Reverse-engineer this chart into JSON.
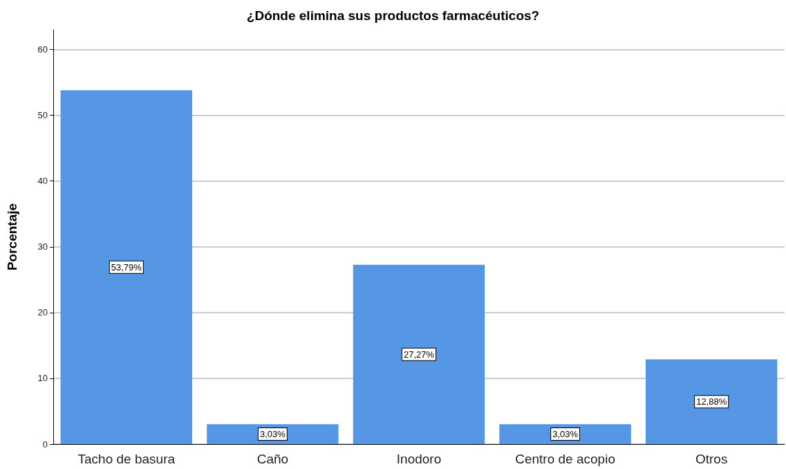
{
  "chart_data": {
    "type": "bar",
    "title": "¿Dónde elimina sus productos farmacéuticos?",
    "ylabel": "Porcentaje",
    "categories": [
      "Tacho de basura",
      "Caño",
      "Inodoro",
      "Centro de acopio",
      "Otros"
    ],
    "values": [
      53.79,
      3.03,
      27.27,
      3.03,
      12.88
    ],
    "value_labels": [
      "53,79%",
      "3,03%",
      "27,27%",
      "3,03%",
      "12,88%"
    ],
    "color": "#5596e5",
    "ylim": [
      0,
      63
    ],
    "yticks": [
      0,
      10,
      20,
      30,
      40,
      50,
      60
    ],
    "grid": "y"
  }
}
